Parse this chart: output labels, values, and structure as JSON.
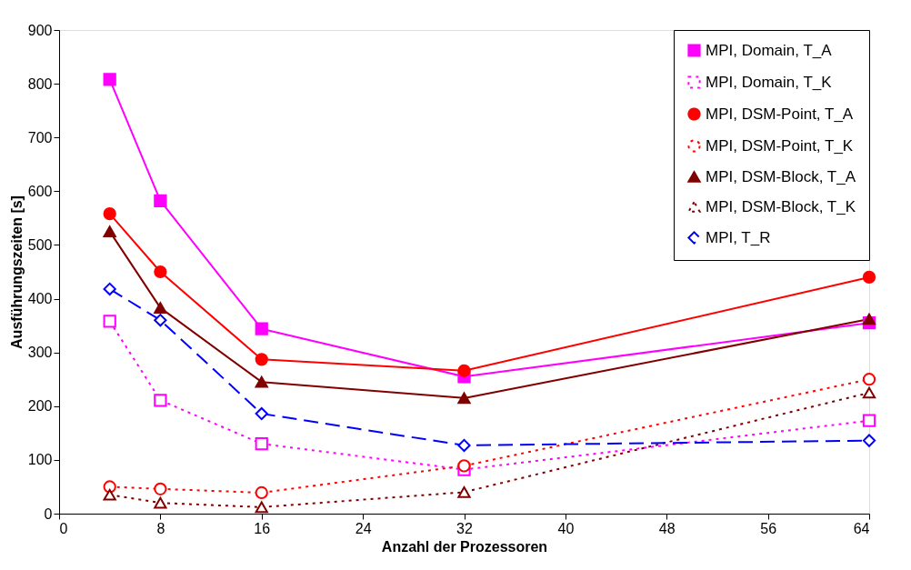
{
  "chart_data": {
    "type": "line",
    "xlabel": "Anzahl der Prozessoren",
    "ylabel": "Ausführungszeiten [s]",
    "x": [
      4,
      8,
      16,
      32,
      64
    ],
    "xlim": [
      0,
      64
    ],
    "xticks": [
      0,
      8,
      16,
      24,
      32,
      40,
      48,
      56,
      64
    ],
    "ylim": [
      0,
      900
    ],
    "yticks": [
      0,
      100,
      200,
      300,
      400,
      500,
      600,
      700,
      800,
      900
    ],
    "grid": false,
    "legend": "top right",
    "series": [
      {
        "name": "MPI, Domain, T_A",
        "color": "#ff00ff",
        "marker": "square",
        "line_style": "solid",
        "values": [
          808,
          582,
          344,
          255,
          355
        ]
      },
      {
        "name": "MPI, Domain, T_K",
        "color": "#ff00ff",
        "marker": "square",
        "line_style": "dotted",
        "values": [
          358,
          211,
          130,
          82,
          173
        ]
      },
      {
        "name": "MPI, DSM-Point, T_A",
        "color": "#ff0000",
        "marker": "circle",
        "line_style": "solid",
        "values": [
          558,
          450,
          287,
          266,
          440
        ]
      },
      {
        "name": "MPI, DSM-Point, T_K",
        "color": "#ff0000",
        "marker": "circle",
        "line_style": "dotted",
        "values": [
          50,
          46,
          39,
          89,
          250
        ]
      },
      {
        "name": "MPI, DSM-Block, T_A",
        "color": "#800000",
        "marker": "triangle",
        "line_style": "solid",
        "values": [
          525,
          383,
          245,
          215,
          362
        ]
      },
      {
        "name": "MPI, DSM-Block, T_K",
        "color": "#800000",
        "marker": "triangle",
        "line_style": "dotted",
        "values": [
          35,
          20,
          12,
          40,
          225
        ]
      },
      {
        "name": "MPI, T_R",
        "color": "#0000ff",
        "marker": "diamond",
        "line_style": "dashed",
        "values": [
          418,
          360,
          186,
          127,
          136
        ]
      }
    ]
  }
}
